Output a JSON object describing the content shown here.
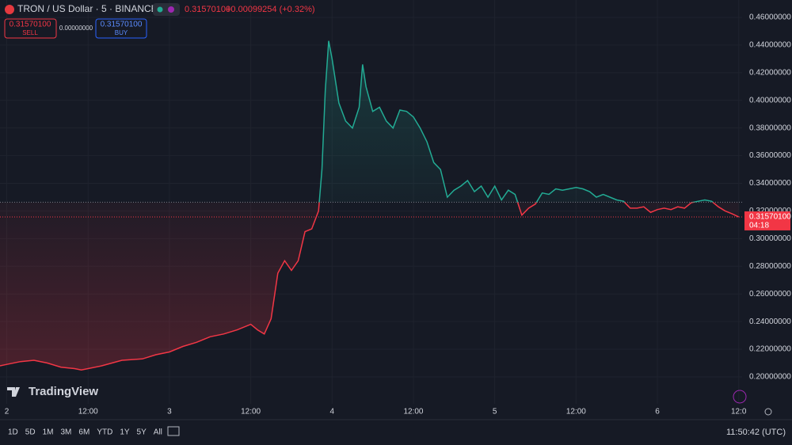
{
  "header": {
    "symbol": "TRON / US Dollar · 5 · BINANCE",
    "price": "0.31570100",
    "change": "+0.00099254 (+0.32%)",
    "sell_price": "0.31570100",
    "sell_label": "SELL",
    "spread": "0.00000000",
    "buy_price": "0.31570100",
    "buy_label": "BUY"
  },
  "logo": "TradingView",
  "toolbar": {
    "ranges": [
      "1D",
      "5D",
      "1M",
      "3M",
      "6M",
      "YTD",
      "1Y",
      "5Y",
      "All"
    ],
    "clock": "11:50:42 (UTC)"
  },
  "chart_data": {
    "type": "baseline",
    "baseline": 0.3263,
    "last_price": {
      "value": 0.315701,
      "label": "0.31570100"
    },
    "countdown": "04:18",
    "up_color": "#22ab94",
    "down_color": "#f23645",
    "grid": true,
    "xlim": [
      -1,
      108.5
    ],
    "ylim": [
      0.1805,
      0.4726
    ],
    "xticks": [
      {
        "value": 0,
        "label": "2"
      },
      {
        "value": 12,
        "label": "12:00"
      },
      {
        "value": 24,
        "label": "3"
      },
      {
        "value": 36,
        "label": "12:00"
      },
      {
        "value": 48,
        "label": "4"
      },
      {
        "value": 60,
        "label": "12:00"
      },
      {
        "value": 72,
        "label": "5"
      },
      {
        "value": 84,
        "label": "12:00"
      },
      {
        "value": 96,
        "label": "6"
      },
      {
        "value": 108,
        "label": "12:0"
      }
    ],
    "yticks": [
      {
        "value": 0.2,
        "label": "0.20000000"
      },
      {
        "value": 0.22,
        "label": "0.22000000"
      },
      {
        "value": 0.24,
        "label": "0.24000000"
      },
      {
        "value": 0.26,
        "label": "0.26000000"
      },
      {
        "value": 0.28,
        "label": "0.28000000"
      },
      {
        "value": 0.3,
        "label": "0.30000000"
      },
      {
        "value": 0.32,
        "label": "0.32000000"
      },
      {
        "value": 0.34,
        "label": "0.34000000"
      },
      {
        "value": 0.36,
        "label": "0.36000000"
      },
      {
        "value": 0.38,
        "label": "0.38000000"
      },
      {
        "value": 0.4,
        "label": "0.40000000"
      },
      {
        "value": 0.42,
        "label": "0.42000000"
      },
      {
        "value": 0.44,
        "label": "0.44000000"
      },
      {
        "value": 0.46,
        "label": "0.46000000"
      }
    ],
    "x": [
      -1,
      0,
      2,
      4,
      6,
      8,
      10,
      11,
      14,
      17,
      20,
      22,
      24,
      26,
      28,
      30,
      32,
      34,
      36,
      37,
      38,
      39,
      40,
      41,
      42,
      43,
      44,
      45,
      46,
      46.5,
      47,
      47.5,
      48,
      49,
      50,
      51,
      52,
      52.5,
      53,
      54,
      55,
      56,
      57,
      58,
      59,
      60,
      61,
      62,
      63,
      64,
      65,
      66,
      67,
      68,
      69,
      70,
      71,
      72,
      73,
      74,
      75,
      76,
      77,
      78,
      79,
      80,
      81,
      82,
      83,
      84,
      85,
      86,
      87,
      88,
      89,
      90,
      91,
      92,
      93,
      94,
      95,
      96,
      97,
      98,
      99,
      100,
      101,
      102,
      103,
      104,
      105,
      106,
      107,
      108
    ],
    "values": [
      0.208,
      0.209,
      0.211,
      0.212,
      0.21,
      0.207,
      0.206,
      0.205,
      0.208,
      0.212,
      0.213,
      0.216,
      0.218,
      0.222,
      0.225,
      0.229,
      0.231,
      0.234,
      0.238,
      0.234,
      0.231,
      0.242,
      0.275,
      0.284,
      0.277,
      0.284,
      0.305,
      0.307,
      0.32,
      0.35,
      0.407,
      0.443,
      0.43,
      0.398,
      0.385,
      0.38,
      0.395,
      0.426,
      0.41,
      0.392,
      0.395,
      0.385,
      0.38,
      0.393,
      0.392,
      0.388,
      0.38,
      0.37,
      0.355,
      0.35,
      0.33,
      0.335,
      0.338,
      0.342,
      0.334,
      0.338,
      0.33,
      0.338,
      0.328,
      0.335,
      0.332,
      0.317,
      0.322,
      0.325,
      0.333,
      0.332,
      0.336,
      0.335,
      0.336,
      0.337,
      0.336,
      0.334,
      0.33,
      0.332,
      0.33,
      0.328,
      0.327,
      0.322,
      0.322,
      0.323,
      0.319,
      0.321,
      0.322,
      0.321,
      0.323,
      0.322,
      0.326,
      0.327,
      0.328,
      0.327,
      0.323,
      0.32,
      0.318,
      0.3157
    ]
  }
}
